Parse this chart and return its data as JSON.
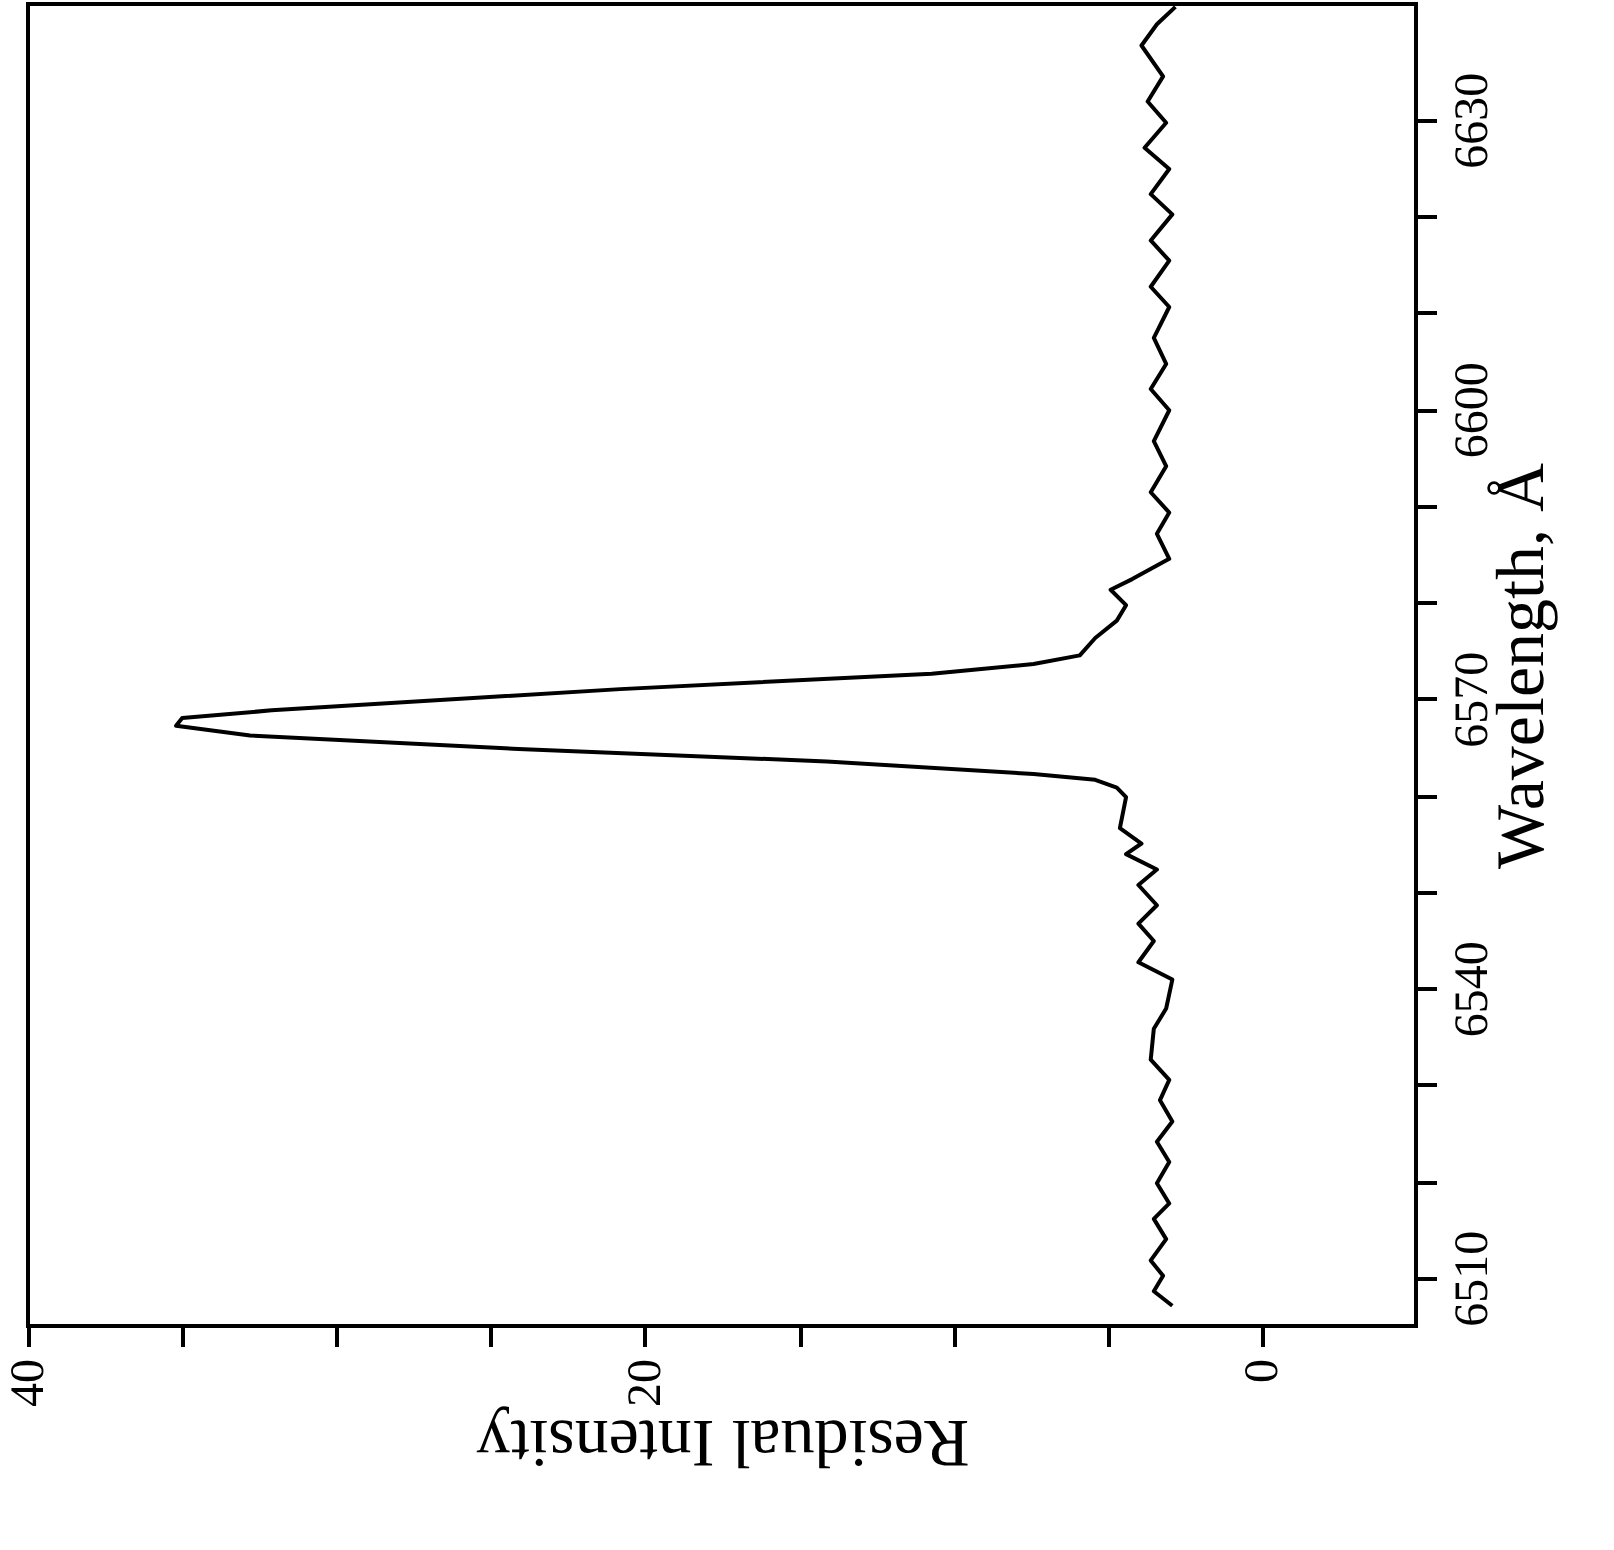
{
  "chart_data": {
    "type": "line",
    "orientation": "horizontal",
    "xlabel": "Residual Intensity",
    "ylabel": "Wavelength, Å",
    "xlim": [
      40,
      -5
    ],
    "xticks": [
      40,
      {
        "value": 35,
        "label": null
      },
      {
        "value": 30,
        "label": null
      },
      {
        "value": 25,
        "label": null
      },
      20,
      {
        "value": 15,
        "label": null
      },
      {
        "value": 10,
        "label": null
      },
      {
        "value": 5,
        "label": null
      },
      0
    ],
    "ylim": [
      6505,
      6642
    ],
    "yticks": [
      6510,
      {
        "value": 6520,
        "label": null
      },
      {
        "value": 6530,
        "label": null
      },
      6540,
      {
        "value": 6550,
        "label": null
      },
      {
        "value": 6560,
        "label": null
      },
      6570,
      {
        "value": 6580,
        "label": null
      },
      {
        "value": 6590,
        "label": null
      },
      6600,
      {
        "value": 6610,
        "label": null
      },
      {
        "value": 6620,
        "label": null
      },
      6630
    ],
    "grid": false,
    "marker": "none",
    "line_style": "solid",
    "series": [
      {
        "color": "#000000",
        "x": [
          6507.1,
          6508.6,
          6510.2,
          6511.8,
          6514.0,
          6516.1,
          6517.7,
          6519.8,
          6522.0,
          6524.1,
          6526.2,
          6528.4,
          6530.5,
          6532.6,
          6535.8,
          6537.9,
          6540.9,
          6542.7,
          6544.9,
          6546.7,
          6548.6,
          6550.7,
          6552.3,
          6553.9,
          6555.0,
          6556.6,
          6559.8,
          6560.8,
          6561.6,
          6562.2,
          6563.5,
          6564.8,
          6566.2,
          6567.2,
          6568.0,
          6568.8,
          6571.0,
          6572.6,
          6573.6,
          6574.5,
          6576.3,
          6578.1,
          6579.7,
          6581.3,
          6582.4,
          6584.5,
          6587.1,
          6589.3,
          6591.4,
          6594.1,
          6596.7,
          6599.9,
          6602.1,
          6604.7,
          6607.4,
          6610.6,
          6612.7,
          6615.4,
          6617.5,
          6620.2,
          6622.3,
          6624.9,
          6627.1,
          6629.7,
          6631.9,
          6634.5,
          6637.7,
          6639.9,
          6641.7
        ],
        "values": [
          2.9,
          3.5,
          3.2,
          3.6,
          3.1,
          3.5,
          3.0,
          3.4,
          3.0,
          3.4,
          2.9,
          3.3,
          3.0,
          3.6,
          3.5,
          3.1,
          2.9,
          4.0,
          3.5,
          4.0,
          3.4,
          4.0,
          3.4,
          4.4,
          3.9,
          4.6,
          4.4,
          4.7,
          5.4,
          7.4,
          14.1,
          24.1,
          32.8,
          35.2,
          35.0,
          32.1,
          20.8,
          10.7,
          7.4,
          5.9,
          5.4,
          4.7,
          4.4,
          4.9,
          4.2,
          3.0,
          3.4,
          3.0,
          3.6,
          3.1,
          3.5,
          3.0,
          3.6,
          3.1,
          3.5,
          3.0,
          3.6,
          3.0,
          3.6,
          2.9,
          3.6,
          3.0,
          3.8,
          3.1,
          3.7,
          3.2,
          3.9,
          3.4,
          2.8
        ]
      }
    ]
  }
}
